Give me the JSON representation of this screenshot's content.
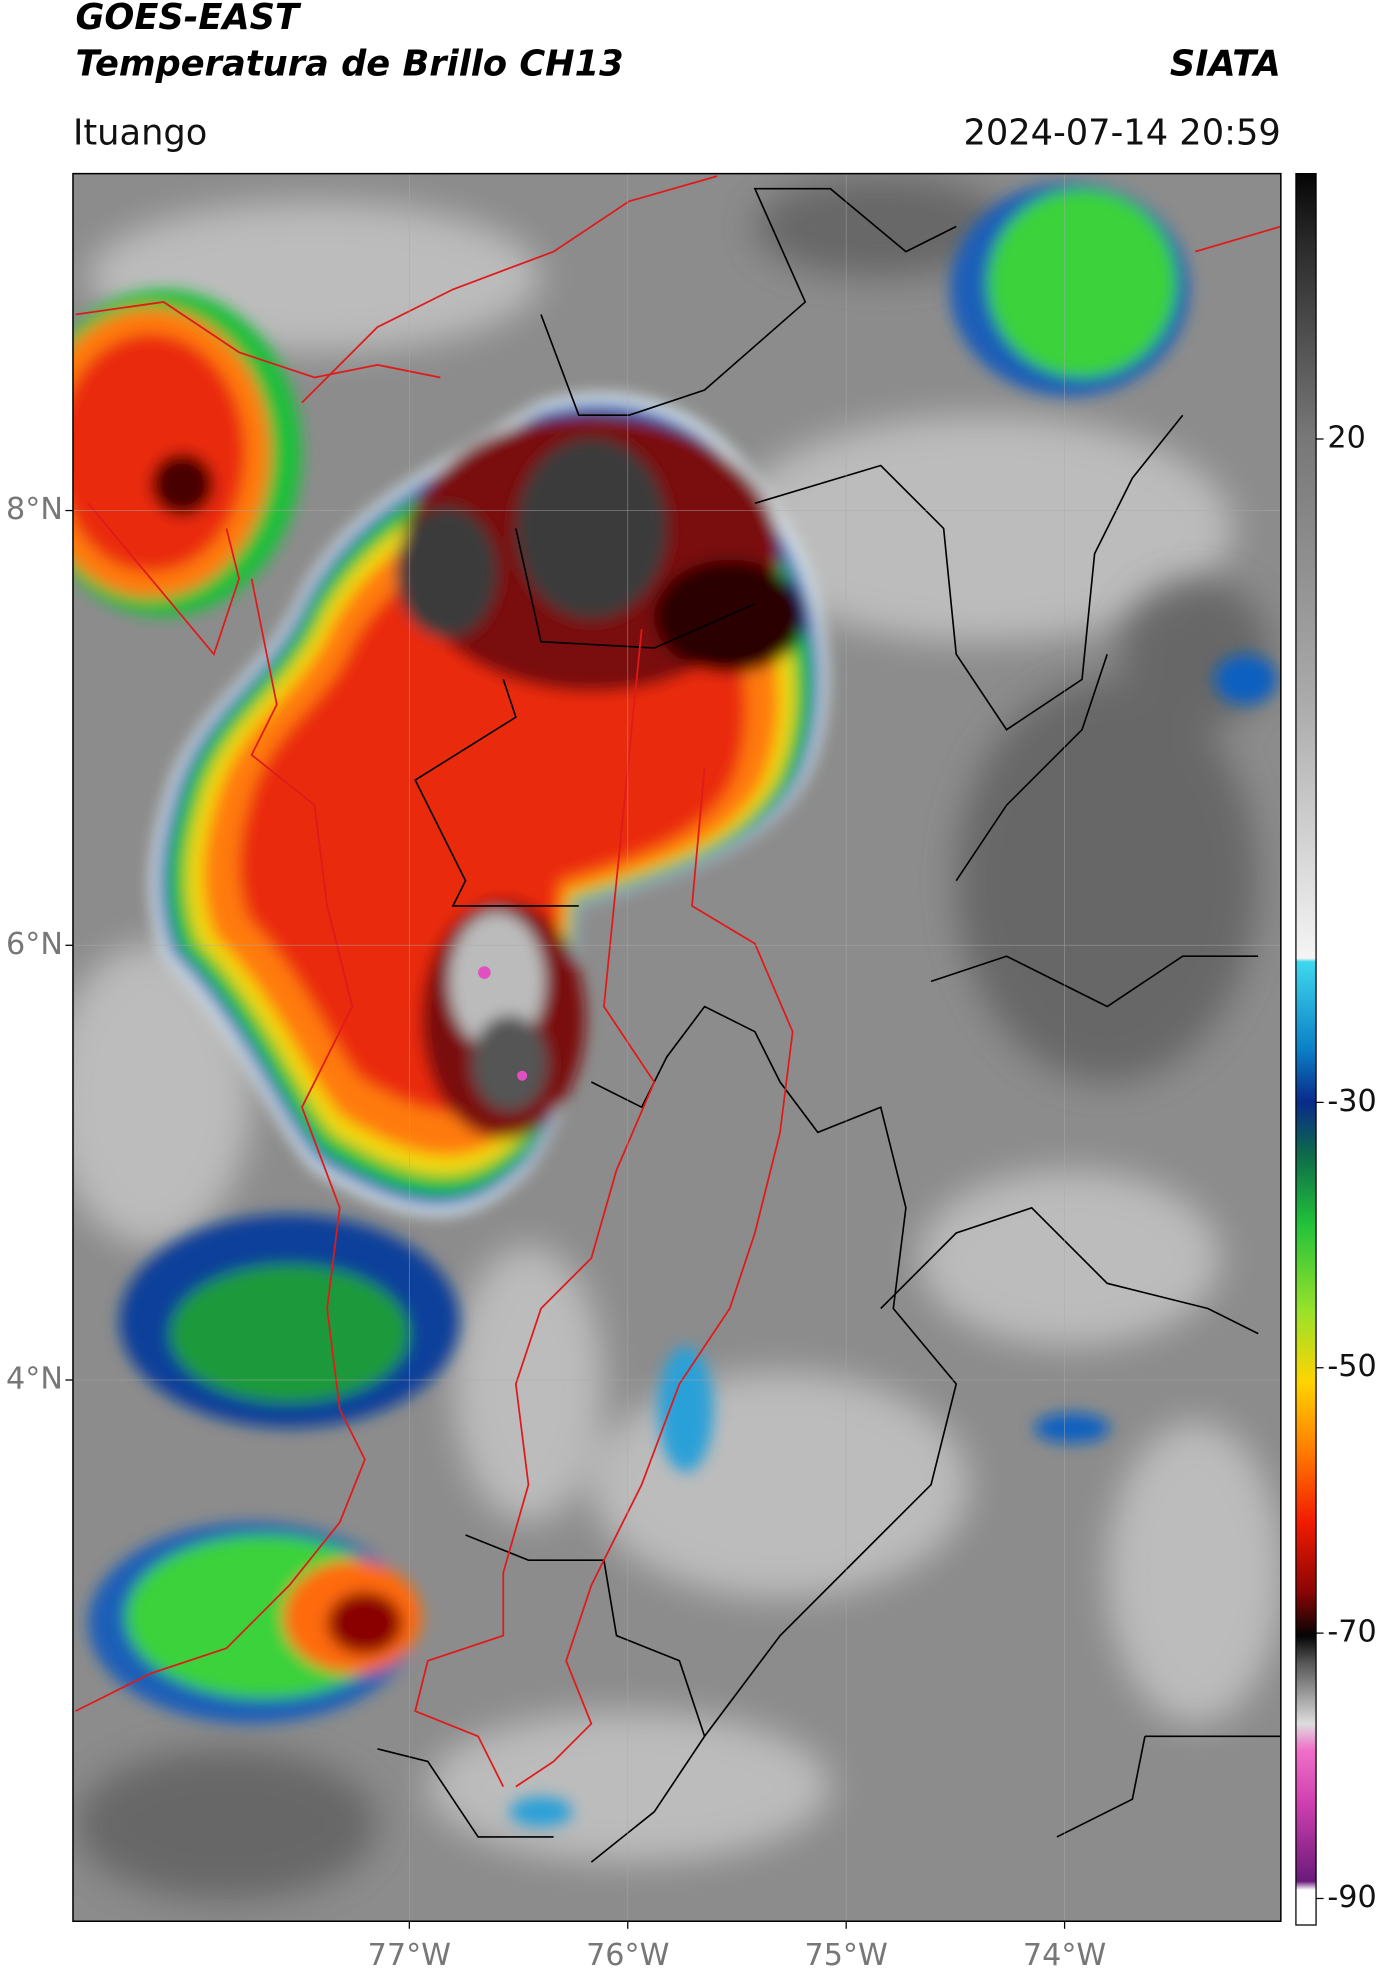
{
  "header": {
    "source": "GOES-EAST",
    "product": "Temperatura de Brillo CH13",
    "agency": "SIATA",
    "location": "Ituango",
    "datetime": "2024-07-14 20:59"
  },
  "map": {
    "lat_range": [
      1.51,
      9.55
    ],
    "lon_range": [
      -78.54,
      -73.01
    ],
    "lat_ticks": [
      {
        "value": 8,
        "label": "8°N"
      },
      {
        "value": 6,
        "label": "6°N"
      },
      {
        "value": 4,
        "label": "4°N"
      }
    ],
    "lon_ticks": [
      {
        "value": -77,
        "label": "77°W"
      },
      {
        "value": -76,
        "label": "76°W"
      },
      {
        "value": -75,
        "label": "75°W"
      },
      {
        "value": -74,
        "label": "74°W"
      }
    ],
    "grid": true
  },
  "colorbar": {
    "range": [
      -92,
      40
    ],
    "ticks": [
      20,
      -30,
      -50,
      -70,
      -90
    ]
  }
}
